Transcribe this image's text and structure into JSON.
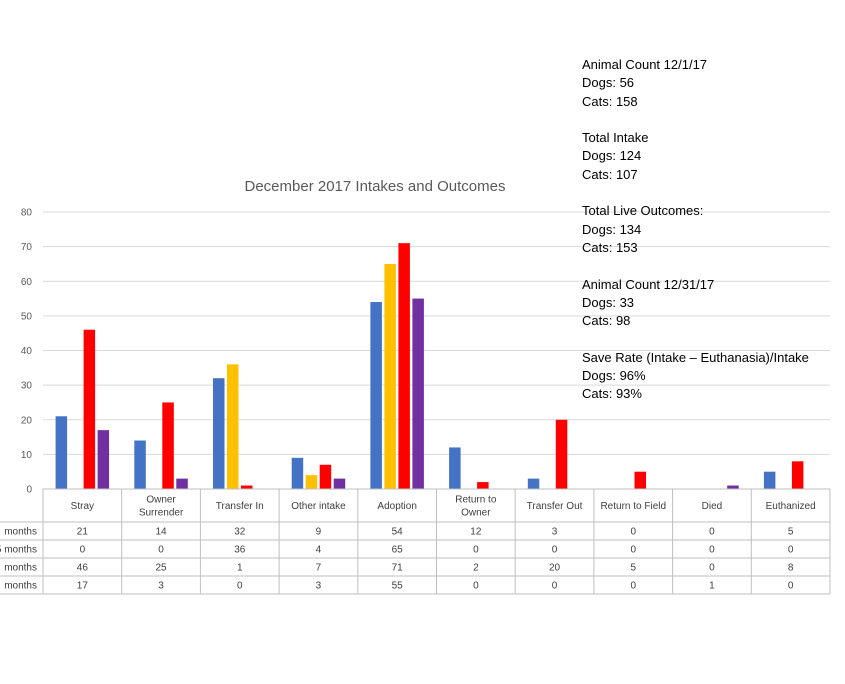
{
  "chart_data": {
    "type": "bar",
    "title": "December 2017 Intakes and Outcomes",
    "ylim": [
      0,
      80
    ],
    "yticks": [
      0,
      10,
      20,
      30,
      40,
      50,
      60,
      70,
      80
    ],
    "categories": [
      [
        "Stray"
      ],
      [
        "Owner",
        "Surrender"
      ],
      [
        "Transfer In"
      ],
      [
        "Other intake"
      ],
      [
        "Adoption"
      ],
      [
        "Return to",
        "Owner"
      ],
      [
        "Transfer Out"
      ],
      [
        "Return to Field"
      ],
      [
        "Died"
      ],
      [
        "Euthanized"
      ]
    ],
    "series": [
      {
        "name": "months",
        "color": "#4472C4",
        "values": [
          21,
          14,
          32,
          9,
          54,
          12,
          3,
          0,
          0,
          5
        ]
      },
      {
        "name": "5 months",
        "color": "#FFC000",
        "values": [
          0,
          0,
          36,
          4,
          65,
          0,
          0,
          0,
          0,
          0
        ]
      },
      {
        "name": "months",
        "color": "#FF0000",
        "values": [
          46,
          25,
          1,
          7,
          71,
          2,
          20,
          5,
          0,
          8
        ]
      },
      {
        "name": "months",
        "color": "#7030A0",
        "values": [
          17,
          3,
          0,
          3,
          55,
          0,
          0,
          0,
          1,
          0
        ]
      }
    ],
    "grid": true,
    "legend": "data table below chart"
  },
  "info_blocks": [
    {
      "lines": [
        "Animal Count 12/1/17",
        "Dogs: 56",
        "Cats: 158"
      ]
    },
    {
      "lines": [
        "Total Intake",
        "Dogs: 124",
        "Cats: 107"
      ]
    },
    {
      "lines": [
        "Total Live Outcomes:",
        "Dogs: 134",
        "Cats: 153"
      ]
    },
    {
      "lines": [
        "Animal Count 12/31/17",
        "Dogs: 33",
        "Cats: 98"
      ]
    },
    {
      "lines": [
        "Save Rate (Intake – Euthanasia)/Intake",
        "Dogs: 96%",
        "Cats: 93%"
      ]
    }
  ]
}
